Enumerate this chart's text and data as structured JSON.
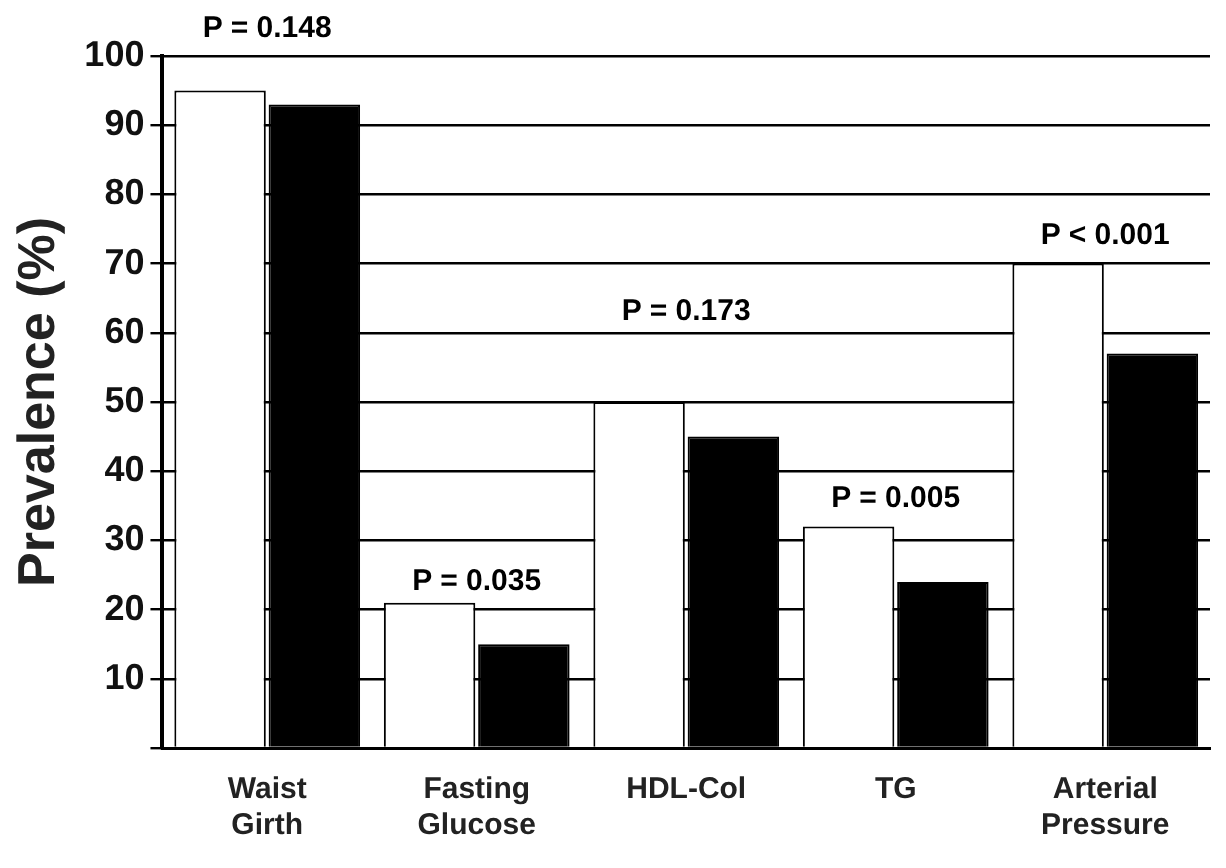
{
  "chart_data": {
    "type": "bar",
    "ylabel": "Prevalence (%)",
    "categories": [
      "Waist Girth",
      "Fasting Glucose",
      "HDL-Col",
      "TG",
      "Arterial Pressure"
    ],
    "series": [
      {
        "color": "#ffffff",
        "values": [
          95,
          21,
          50,
          32,
          70
        ]
      },
      {
        "color": "#000000",
        "values": [
          93,
          15,
          45,
          24,
          57
        ]
      }
    ],
    "ylim": [
      0,
      100
    ],
    "yticks": [
      {
        "value": 0,
        "label": null
      },
      10,
      20,
      30,
      40,
      50,
      60,
      70,
      80,
      90,
      100
    ],
    "grid": "y",
    "legend": false,
    "annotations": [
      "P = 0.148",
      "P = 0.035",
      "P = 0.173",
      "P = 0.005",
      "P < 0.001"
    ]
  }
}
